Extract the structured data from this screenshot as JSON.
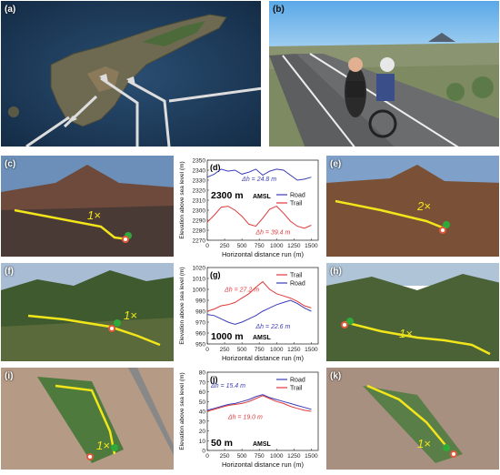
{
  "panel_labels": {
    "a": "(a)",
    "b": "(b)",
    "c": "(c)",
    "d": "(d)",
    "e": "(e)",
    "f": "(f)",
    "g": "(g)",
    "h": "(h)",
    "i": "(i)",
    "j": "(j)",
    "k": "(k)"
  },
  "route_marks": {
    "c": "1×",
    "e": "2×",
    "f": "1×",
    "h": "1×",
    "i": "1×",
    "k": "1×"
  },
  "colors": {
    "route": "#f2e61b",
    "road": "#3b3bb8",
    "trail": "#e0393b",
    "start": "#2eaa3a",
    "finish": "#e05a3a"
  },
  "chart_data": [
    {
      "panel": "(d)",
      "type": "line",
      "altitude_label": "2300 m",
      "altitude_unit": "AMSL",
      "xlabel": "Horizontal distance run (m)",
      "ylabel": "Elevation above sea level (m)",
      "xlim": [
        0,
        1600
      ],
      "ylim": [
        2270,
        2350
      ],
      "xticks": [
        0,
        250,
        500,
        750,
        1000,
        1250,
        1500
      ],
      "yticks": [
        2270,
        2280,
        2290,
        2300,
        2310,
        2320,
        2330,
        2340,
        2350
      ],
      "legend": [
        "Road",
        "Trail"
      ],
      "legend_position": "right-middle",
      "annotations": [
        "Δh = 24.8 m",
        "Δh = 39.4 m"
      ],
      "series": [
        {
          "name": "Road",
          "x": [
            0,
            100,
            200,
            300,
            400,
            500,
            600,
            700,
            800,
            900,
            1000,
            1100,
            1200,
            1300,
            1400,
            1500
          ],
          "y": [
            2333,
            2336,
            2341,
            2339,
            2340,
            2336,
            2338,
            2341,
            2335,
            2339,
            2341,
            2340,
            2335,
            2330,
            2331,
            2333
          ]
        },
        {
          "name": "Trail",
          "x": [
            0,
            100,
            200,
            300,
            400,
            500,
            600,
            700,
            800,
            900,
            1000,
            1100,
            1200,
            1300,
            1400,
            1500
          ],
          "y": [
            2288,
            2295,
            2303,
            2304,
            2300,
            2294,
            2286,
            2284,
            2292,
            2301,
            2304,
            2297,
            2289,
            2284,
            2282,
            2285
          ]
        }
      ]
    },
    {
      "panel": "(g)",
      "type": "line",
      "altitude_label": "1000 m",
      "altitude_unit": "AMSL",
      "xlabel": "Horizontal distance run (m)",
      "ylabel": "Elevation above sea level (m)",
      "xlim": [
        0,
        1600
      ],
      "ylim": [
        950,
        1020
      ],
      "xticks": [
        0,
        250,
        500,
        750,
        1000,
        1250,
        1500
      ],
      "yticks": [
        950,
        960,
        970,
        980,
        990,
        1000,
        1010,
        1020
      ],
      "legend": [
        "Trail",
        "Road"
      ],
      "legend_position": "top-right",
      "annotations": [
        "Δh = 27.2 m",
        "Δh = 22.6 m"
      ],
      "series": [
        {
          "name": "Trail",
          "x": [
            0,
            100,
            200,
            300,
            400,
            500,
            600,
            700,
            800,
            900,
            1000,
            1100,
            1200,
            1300,
            1400,
            1500
          ],
          "y": [
            980,
            982,
            985,
            986,
            988,
            992,
            996,
            1002,
            1007,
            1000,
            996,
            994,
            992,
            989,
            985,
            983
          ]
        },
        {
          "name": "Road",
          "x": [
            0,
            100,
            200,
            300,
            400,
            500,
            600,
            700,
            800,
            900,
            1000,
            1100,
            1200,
            1300,
            1400,
            1500
          ],
          "y": [
            977,
            976,
            973,
            970,
            968,
            970,
            973,
            976,
            980,
            983,
            986,
            988,
            990,
            987,
            983,
            980
          ]
        }
      ]
    },
    {
      "panel": "(j)",
      "type": "line",
      "altitude_label": "50 m",
      "altitude_unit": "AMSL",
      "xlabel": "Horizontal distance run (m)",
      "ylabel": "Elevation above sea level (m)",
      "xlim": [
        0,
        1600
      ],
      "ylim": [
        0,
        80
      ],
      "xticks": [
        0,
        250,
        500,
        750,
        1000,
        1250,
        1500
      ],
      "yticks": [
        0,
        10,
        20,
        30,
        40,
        50,
        60,
        70,
        80
      ],
      "legend": [
        "Road",
        "Trail"
      ],
      "legend_position": "top-right",
      "annotations": [
        "Δh = 15.4 m",
        "Δh = 19.0 m"
      ],
      "series": [
        {
          "name": "Road",
          "x": [
            0,
            100,
            200,
            300,
            400,
            500,
            600,
            700,
            800,
            900,
            1000,
            1100,
            1200,
            1300,
            1400,
            1500
          ],
          "y": [
            41,
            43,
            45,
            47,
            48,
            50,
            52,
            55,
            57,
            54,
            52,
            50,
            48,
            46,
            44,
            42
          ]
        },
        {
          "name": "Trail",
          "x": [
            0,
            100,
            200,
            300,
            400,
            500,
            600,
            700,
            800,
            900,
            1000,
            1100,
            1200,
            1300,
            1400,
            1500
          ],
          "y": [
            40,
            42,
            44,
            46,
            47,
            48,
            50,
            53,
            56,
            53,
            50,
            48,
            45,
            43,
            41,
            40
          ]
        }
      ]
    }
  ]
}
